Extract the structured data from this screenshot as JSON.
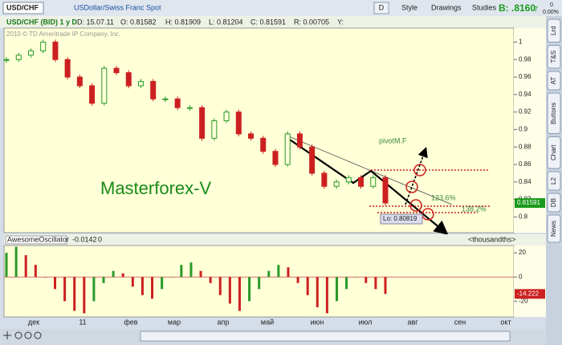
{
  "toolbar": {
    "symbol": "USD/CHF",
    "description": "USDollar/Swiss Franc Spot",
    "period": "D",
    "style": "Style",
    "drawings": "Drawings",
    "studies": "Studies",
    "bid_label": "B:",
    "bid": ".8160",
    "bid_digit": "7",
    "change": "0",
    "change_pct": "0.00%"
  },
  "info": {
    "title": "USD/CHF (BID) 1 y D",
    "date": "D: 15.07.11",
    "open": "O: 0.81582",
    "high": "H: 0.81909",
    "low": "L: 0.81204",
    "close": "C: 0.81591",
    "range": "R: 0.00705",
    "y": "Y:"
  },
  "copyright": "2010 © TD Ameritrade IP Company, Inc.",
  "sidebar": [
    "Lrd",
    "T&S",
    "AT",
    "Buttons",
    "Chart",
    "L2",
    "DB",
    "News"
  ],
  "chart_data": [
    {
      "type": "candlestick",
      "title": "USD/CHF",
      "values": [
        0.98,
        0.985,
        0.99,
        1.0,
        0.98,
        0.96,
        0.95,
        0.93,
        0.97,
        0.965,
        0.95,
        0.955,
        0.935,
        0.935,
        0.925,
        0.925,
        0.89,
        0.91,
        0.92,
        0.895,
        0.89,
        0.875,
        0.86,
        0.895,
        0.88,
        0.85,
        0.835,
        0.84,
        0.845,
        0.835,
        0.845,
        0.816
      ],
      "up_color": "#2a9a2a",
      "down_color": "#cc2020",
      "ylim": [
        0.782,
        1.016
      ],
      "yticks": [
        0.8,
        0.82,
        0.84,
        0.86,
        0.88,
        0.9,
        0.92,
        0.94,
        0.96,
        0.98,
        1
      ],
      "last_price": 0.81591,
      "annotations": [
        "Masterforex-V",
        "pivotM.F",
        "123.6%",
        "138.2%",
        "Lo: 0.80819"
      ]
    },
    {
      "type": "bar",
      "title": "AwesomeOscillator",
      "current": "-0.0142",
      "zero": "0",
      "units": "<thousandths>",
      "values": [
        20,
        25,
        18,
        10,
        0,
        -10,
        -20,
        -28,
        -30,
        -20,
        -5,
        5,
        3,
        -8,
        -15,
        -18,
        -10,
        0,
        10,
        12,
        5,
        -5,
        -15,
        -22,
        -28,
        -20,
        -10,
        5,
        10,
        8,
        -5,
        -15,
        -25,
        -30,
        -20,
        -10,
        0,
        -5,
        -10,
        -14
      ],
      "up_color": "#2a9a2a",
      "down_color": "#cc2020",
      "ylim": [
        -33,
        26
      ],
      "yticks": [
        -20,
        0,
        20
      ],
      "last_label": "-14.222",
      "xlabels": [
        "дек",
        "11",
        "фев",
        "мар",
        "апр",
        "май",
        "июн",
        "июл",
        "авг",
        "сен",
        "окт"
      ]
    }
  ]
}
